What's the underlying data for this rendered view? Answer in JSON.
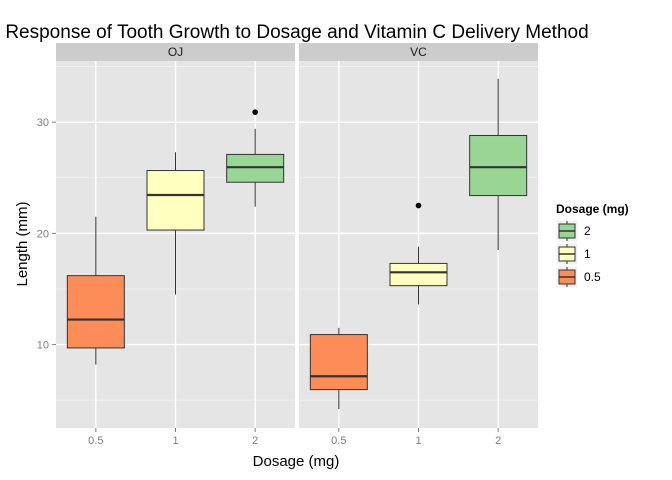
{
  "chart_data": {
    "type": "box",
    "title": "Response of Tooth Growth to Dosage and Vitamin C Delivery Method",
    "xlabel": "Dosage (mg)",
    "ylabel": "Length (mm)",
    "categories": [
      "0.5",
      "1",
      "2"
    ],
    "ylim": [
      2.5,
      35.5
    ],
    "yticks": [
      10,
      20,
      30
    ],
    "grid": true,
    "panels": [
      {
        "name": "OJ",
        "boxes": [
          {
            "category": "0.5",
            "min": 8.2,
            "q1": 9.7,
            "median": 12.25,
            "q3": 16.2,
            "max": 21.5,
            "outliers": []
          },
          {
            "category": "1",
            "min": 14.5,
            "q1": 20.3,
            "median": 23.45,
            "q3": 25.65,
            "max": 27.3,
            "outliers": []
          },
          {
            "category": "2",
            "min": 22.4,
            "q1": 24.6,
            "median": 25.95,
            "q3": 27.1,
            "max": 29.4,
            "outliers": [
              30.9
            ]
          }
        ]
      },
      {
        "name": "VC",
        "boxes": [
          {
            "category": "0.5",
            "min": 4.2,
            "q1": 5.95,
            "median": 7.15,
            "q3": 10.9,
            "max": 11.5,
            "outliers": []
          },
          {
            "category": "1",
            "min": 13.6,
            "q1": 15.3,
            "median": 16.5,
            "q3": 17.3,
            "max": 18.8,
            "outliers": [
              22.5
            ]
          },
          {
            "category": "2",
            "min": 18.5,
            "q1": 23.4,
            "median": 25.95,
            "q3": 28.8,
            "max": 33.9,
            "outliers": []
          }
        ]
      }
    ],
    "legend": {
      "title": "Dosage (mg)",
      "position": "right",
      "items": [
        {
          "label": "2",
          "color": "#99D594"
        },
        {
          "label": "1",
          "color": "#FFFFBF"
        },
        {
          "label": "0.5",
          "color": "#FC8D59"
        }
      ]
    },
    "colors": {
      "0.5": "#FC8D59",
      "1": "#FFFFBF",
      "2": "#99D594"
    }
  }
}
